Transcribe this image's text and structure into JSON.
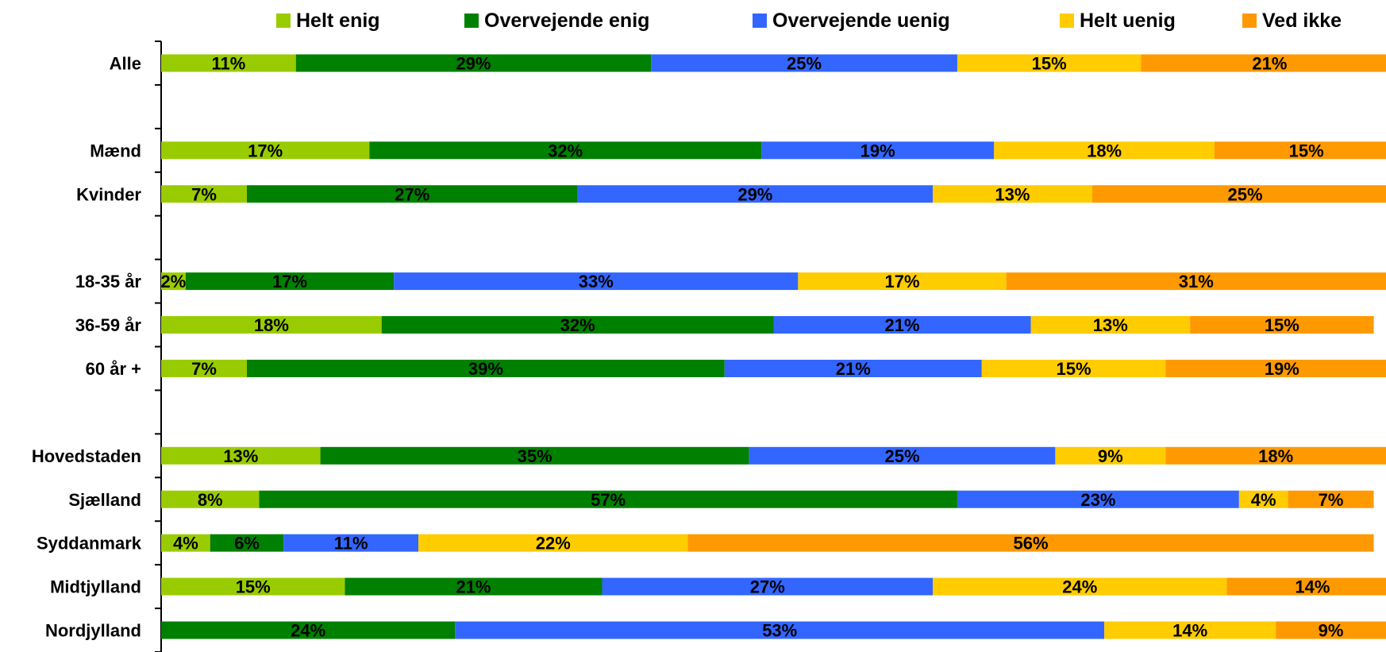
{
  "chart_data": {
    "type": "bar",
    "orientation": "horizontal",
    "stacked": true,
    "title": "",
    "xlabel": "",
    "ylabel": "",
    "xlim": [
      0,
      100
    ],
    "grid": false,
    "legend_position": "top",
    "categories": [
      "Alle",
      "Mænd",
      "Kvinder",
      "18-35 år",
      "36-59 år",
      "60 år +",
      "Hovedstaden",
      "Sjælland",
      "Syddanmark",
      "Midtjylland",
      "Nordjylland"
    ],
    "row_slots": [
      0,
      2,
      3,
      5,
      6,
      7,
      9,
      10,
      11,
      12,
      13
    ],
    "slot_count": 14,
    "series": [
      {
        "name": "Helt enig",
        "color": "#99CC00",
        "values": [
          11,
          17,
          7,
          2,
          18,
          7,
          13,
          8,
          4,
          15,
          0
        ]
      },
      {
        "name": "Overvejende enig",
        "color": "#008000",
        "values": [
          29,
          32,
          27,
          17,
          32,
          39,
          35,
          57,
          6,
          21,
          24
        ]
      },
      {
        "name": "Overvejende uenig",
        "color": "#3366FF",
        "values": [
          25,
          19,
          29,
          33,
          21,
          21,
          25,
          23,
          11,
          27,
          53
        ]
      },
      {
        "name": "Helt uenig",
        "color": "#FFCC00",
        "values": [
          15,
          18,
          13,
          17,
          13,
          15,
          9,
          4,
          22,
          24,
          14
        ]
      },
      {
        "name": "Ved ikke",
        "color": "#FF9900",
        "values": [
          21,
          15,
          25,
          31,
          15,
          19,
          18,
          7,
          56,
          14,
          9
        ]
      }
    ]
  }
}
